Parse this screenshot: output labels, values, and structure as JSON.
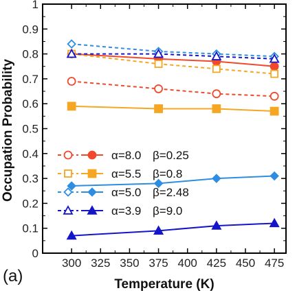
{
  "chart_data": {
    "type": "line",
    "xlabel": "Temperature (K)",
    "ylabel": "Occupation Probability",
    "panel_label": "(a)",
    "xlim": [
      275,
      485
    ],
    "ylim": [
      0,
      1.0
    ],
    "xticks": [
      300,
      325,
      350,
      375,
      400,
      425,
      450,
      475
    ],
    "yticks": [
      0,
      0.1,
      0.2,
      0.3,
      0.4,
      0.5,
      0.6,
      0.7,
      0.8,
      0.9,
      1
    ],
    "x": [
      300,
      375,
      425,
      475
    ],
    "legend_position": "lower-left",
    "groups": [
      {
        "label_alpha": "α=8.0",
        "label_beta": "β=0.25",
        "color": "#f0492c",
        "marker": "circle",
        "open_values": [
          0.69,
          0.66,
          0.64,
          0.63
        ],
        "filled_values": [
          0.8,
          0.78,
          0.77,
          0.75
        ]
      },
      {
        "label_alpha": "α=5.5",
        "label_beta": "β=0.8",
        "color": "#f5a623",
        "marker": "square",
        "open_values": [
          0.8,
          0.76,
          0.74,
          0.72
        ],
        "filled_values": [
          0.59,
          0.58,
          0.58,
          0.57
        ]
      },
      {
        "label_alpha": "α=5.0",
        "label_beta": "β=2.48",
        "color": "#2e8de0",
        "marker": "diamond",
        "open_values": [
          0.84,
          0.81,
          0.8,
          0.79
        ],
        "filled_values": [
          0.27,
          0.28,
          0.3,
          0.31
        ]
      },
      {
        "label_alpha": "α=3.9",
        "label_beta": "β=9.0",
        "color": "#1414c8",
        "marker": "triangle",
        "open_values": [
          0.8,
          0.8,
          0.79,
          0.78
        ],
        "filled_values": [
          0.07,
          0.09,
          0.11,
          0.12
        ]
      }
    ]
  }
}
